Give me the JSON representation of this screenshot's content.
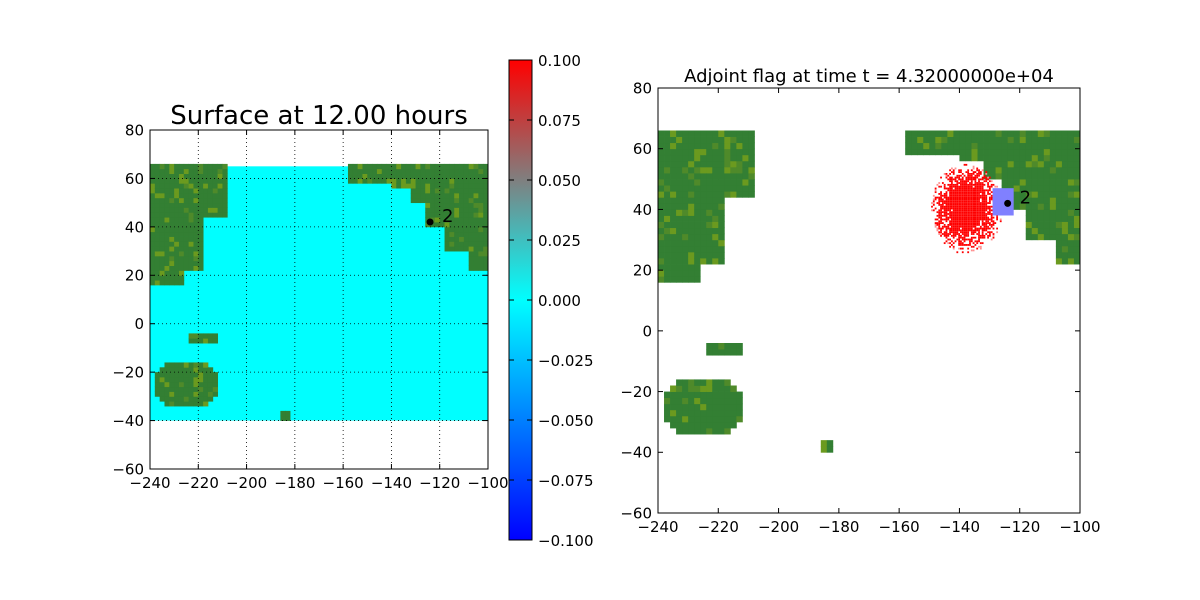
{
  "chart_data": [
    {
      "type": "heatmap",
      "title": "Surface at 12.00 hours",
      "xlabel": "",
      "ylabel": "",
      "xlim": [
        -240,
        -100
      ],
      "ylim": [
        -60,
        80
      ],
      "xticks": [
        "−240",
        "−220",
        "−200",
        "−180",
        "−160",
        "−140",
        "−120",
        "−100"
      ],
      "yticks": [
        "−60",
        "−40",
        "−20",
        "0",
        "20",
        "40",
        "60",
        "80"
      ],
      "grid": true,
      "data_extent": {
        "x": [
          -240,
          -100
        ],
        "y": [
          -40,
          65
        ]
      },
      "ocean_color": "#00ffff",
      "land_color": "#337f33",
      "gauge": {
        "label": "2",
        "x": -124,
        "y": 42
      }
    },
    {
      "type": "colorbar",
      "range": [
        -0.1,
        0.1
      ],
      "ticks": [
        "0.100",
        "0.075",
        "0.050",
        "0.025",
        "0.000",
        "−0.025",
        "−0.050",
        "−0.075",
        "−0.100"
      ],
      "colors": [
        "#0000ff",
        "#00ffff",
        "#ff0000"
      ]
    },
    {
      "type": "heatmap",
      "title": "Adjoint flag at time t = 4.32000000e+04",
      "xlabel": "",
      "ylabel": "",
      "xlim": [
        -240,
        -100
      ],
      "ylim": [
        -60,
        80
      ],
      "xticks": [
        "−240",
        "−220",
        "−200",
        "−180",
        "−160",
        "−140",
        "−120",
        "−100"
      ],
      "yticks": [
        "−60",
        "−40",
        "−20",
        "0",
        "20",
        "40",
        "60",
        "80"
      ],
      "grid": false,
      "land_color": "#337f33",
      "flag_color": "#ff0000",
      "flag_region": {
        "center": [
          -138,
          40
        ],
        "radius_x": 12,
        "radius_y": 15
      },
      "patch": {
        "x": [
          -129,
          -122
        ],
        "y": [
          38,
          47
        ],
        "color": "#8080ff"
      },
      "gauge": {
        "label": "2",
        "x": -124,
        "y": 42
      }
    }
  ]
}
